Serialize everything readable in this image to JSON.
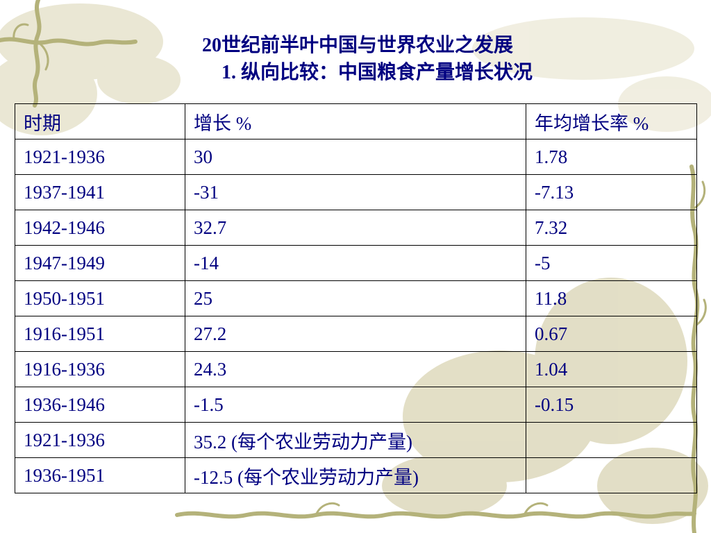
{
  "title": {
    "line1": "20世纪前半叶中国与世界农业之发展",
    "line2": "1. 纵向比较：中国粮食产量增长状况"
  },
  "table": {
    "headers": [
      "时期",
      "增长 %",
      "年均增长率 %"
    ],
    "rows": [
      [
        "1921-1936",
        "30",
        "1.78"
      ],
      [
        "1937-1941",
        "-31",
        "-7.13"
      ],
      [
        "1942-1946",
        "32.7",
        "7.32"
      ],
      [
        "1947-1949",
        "-14",
        "-5"
      ],
      [
        "1950-1951",
        "25",
        "11.8"
      ],
      [
        "1916-1951",
        "27.2",
        "0.67"
      ],
      [
        "1916-1936",
        "24.3",
        "1.04"
      ],
      [
        "1936-1946",
        "-1.5",
        "-0.15"
      ],
      [
        "1921-1936",
        "35.2 (每个农业劳动力产量)",
        ""
      ],
      [
        "1936-1951",
        "-12.5 (每个农业劳动力产量)",
        ""
      ]
    ]
  },
  "colors": {
    "text": "#000080",
    "border": "#000000",
    "vine_olive": "#b4b27a",
    "vine_dark": "#8f8c4f",
    "leaf_wash": "#d8d3b4"
  }
}
